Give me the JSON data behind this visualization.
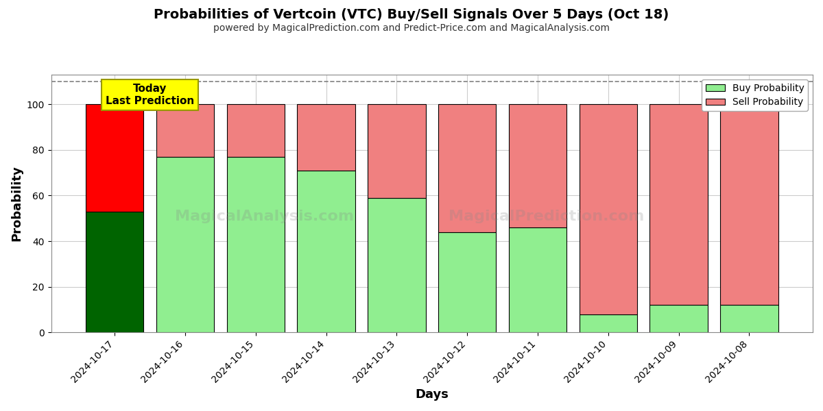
{
  "title": "Probabilities of Vertcoin (VTC) Buy/Sell Signals Over 5 Days (Oct 18)",
  "subtitle": "powered by MagicalPrediction.com and Predict-Price.com and MagicalAnalysis.com",
  "xlabel": "Days",
  "ylabel": "Probability",
  "dates": [
    "2024-10-17",
    "2024-10-16",
    "2024-10-15",
    "2024-10-14",
    "2024-10-13",
    "2024-10-12",
    "2024-10-11",
    "2024-10-10",
    "2024-10-09",
    "2024-10-08"
  ],
  "buy_values": [
    53,
    77,
    77,
    71,
    59,
    44,
    46,
    8,
    12,
    12
  ],
  "sell_values": [
    47,
    23,
    23,
    29,
    41,
    56,
    54,
    92,
    88,
    88
  ],
  "today_buy_color": "#006400",
  "today_sell_color": "#FF0000",
  "buy_color": "#90EE90",
  "sell_color": "#F08080",
  "today_box_color": "#FFFF00",
  "today_label": "Today\nLast Prediction",
  "ylim": [
    0,
    113
  ],
  "yticks": [
    0,
    20,
    40,
    60,
    80,
    100
  ],
  "dashed_line_y": 110,
  "legend_buy_label": "Buy Probability",
  "legend_sell_label": "Sell Probability",
  "background_color": "#ffffff",
  "grid_color": "#cccccc",
  "watermark_texts": [
    "MagicalAnalysis.com",
    "MagicalPrediction.com"
  ],
  "bar_edge_color": "#000000",
  "bar_linewidth": 0.8
}
